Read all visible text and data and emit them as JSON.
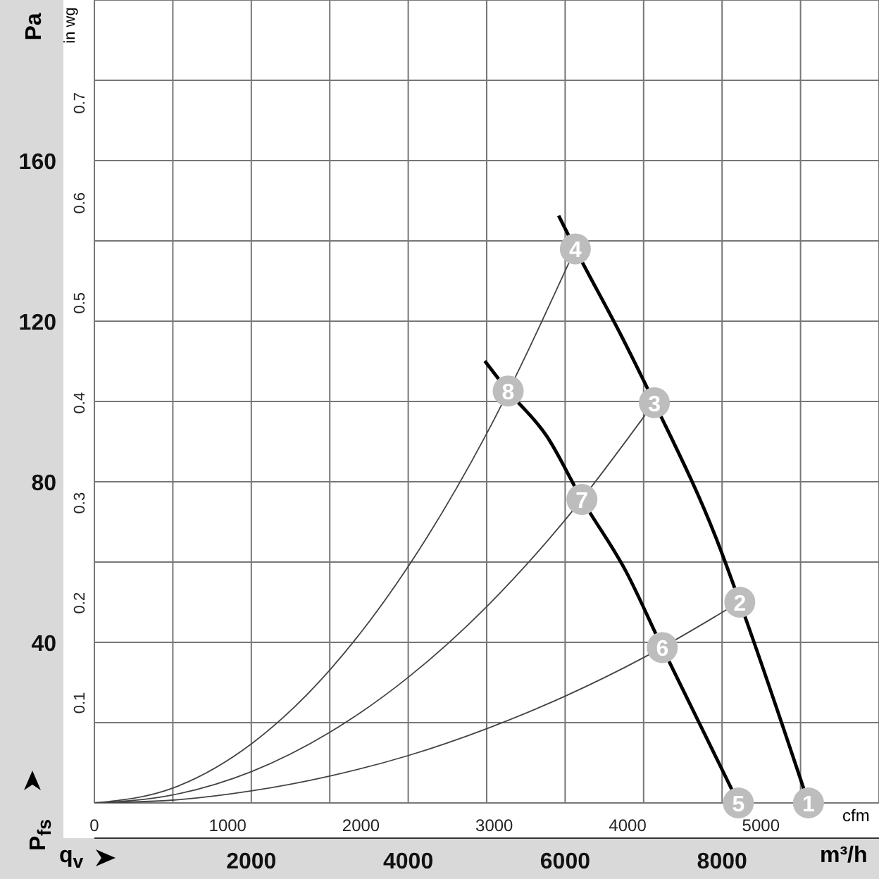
{
  "chart_data": {
    "type": "line",
    "xlabel": "q$_{v}$",
    "ylabel": "P$_{fs}$",
    "x2label": "cfm",
    "y2label": "in wg",
    "annotations": [
      "Pa",
      "m³/h",
      {
        "text": "1",
        "x": 9101,
        "y": 0
      },
      {
        "text": "2",
        "x": 8226,
        "y": 50
      },
      {
        "text": "3",
        "x": 7137,
        "y": 99.7
      },
      {
        "text": "4",
        "x": 6130,
        "y": 138
      },
      {
        "text": "5",
        "x": 8208,
        "y": 0
      },
      {
        "text": "6",
        "x": 7238,
        "y": 38.7
      },
      {
        "text": "7",
        "x": 6214,
        "y": 75.6
      },
      {
        "text": "8",
        "x": 5274,
        "y": 102.6
      }
    ],
    "series": [
      {
        "color": "#000000",
        "x": [
          5917,
          6130,
          6720,
          7137,
          7941,
          8226,
          9101
        ],
        "values": [
          146.3,
          138,
          116.2,
          99.7,
          65.1,
          50,
          0
        ]
      },
      {
        "color": "#000000",
        "x": [
          4976,
          5274,
          5768,
          6214,
          6780,
          7238,
          8208
        ],
        "values": [
          110.1,
          102.6,
          91.3,
          75.6,
          57.5,
          38.7,
          0
        ]
      },
      {
        "color": "#444444",
        "x": [
          0,
          1000,
          2000,
          3000,
          4000,
          5000,
          6047
        ],
        "values": [
          0,
          3.7,
          14.7,
          33.1,
          58.9,
          92,
          134.5
        ]
      },
      {
        "color": "#444444",
        "x": [
          0,
          1000,
          2000,
          3000,
          4000,
          5000,
          6000,
          7019
        ],
        "values": [
          0,
          2,
          7.8,
          17.6,
          31.3,
          48.9,
          70.5,
          96.6
        ]
      },
      {
        "color": "#444444",
        "x": [
          0,
          1000,
          2000,
          3000,
          4000,
          5000,
          6000,
          7000,
          8056
        ],
        "values": [
          0,
          0.7,
          3,
          6.7,
          11.8,
          18.5,
          26.6,
          36.2,
          48.1
        ]
      }
    ],
    "xlim": [
      0,
      10000
    ],
    "xticks": [
      {
        "value": 0,
        "label": null
      },
      {
        "value": 1000,
        "label": null
      },
      2000,
      {
        "value": 3000,
        "label": null
      },
      4000,
      {
        "value": 5000,
        "label": null
      },
      6000,
      {
        "value": 7000,
        "label": null
      },
      8000,
      {
        "value": 9000,
        "label": null
      },
      {
        "value": 10000,
        "label": null
      }
    ],
    "ylim": [
      0,
      200
    ],
    "yticks": [
      {
        "value": 0,
        "label": null
      },
      {
        "value": 20,
        "label": null
      },
      40,
      {
        "value": 60,
        "label": null
      },
      80,
      {
        "value": 100,
        "label": null
      },
      120,
      {
        "value": 140,
        "label": null
      },
      160,
      {
        "value": 180,
        "label": null
      },
      {
        "value": 200,
        "label": null
      }
    ],
    "x2lim": [
      0,
      5886
    ],
    "x2ticks": [
      0,
      1000,
      2000,
      3000,
      4000,
      5000
    ],
    "y2lim": [
      0,
      0.803
    ],
    "y2ticks": [
      0.1,
      0.2,
      0.3,
      0.4,
      0.5,
      0.6,
      0.7
    ],
    "grid": true,
    "line_style": "solid"
  }
}
